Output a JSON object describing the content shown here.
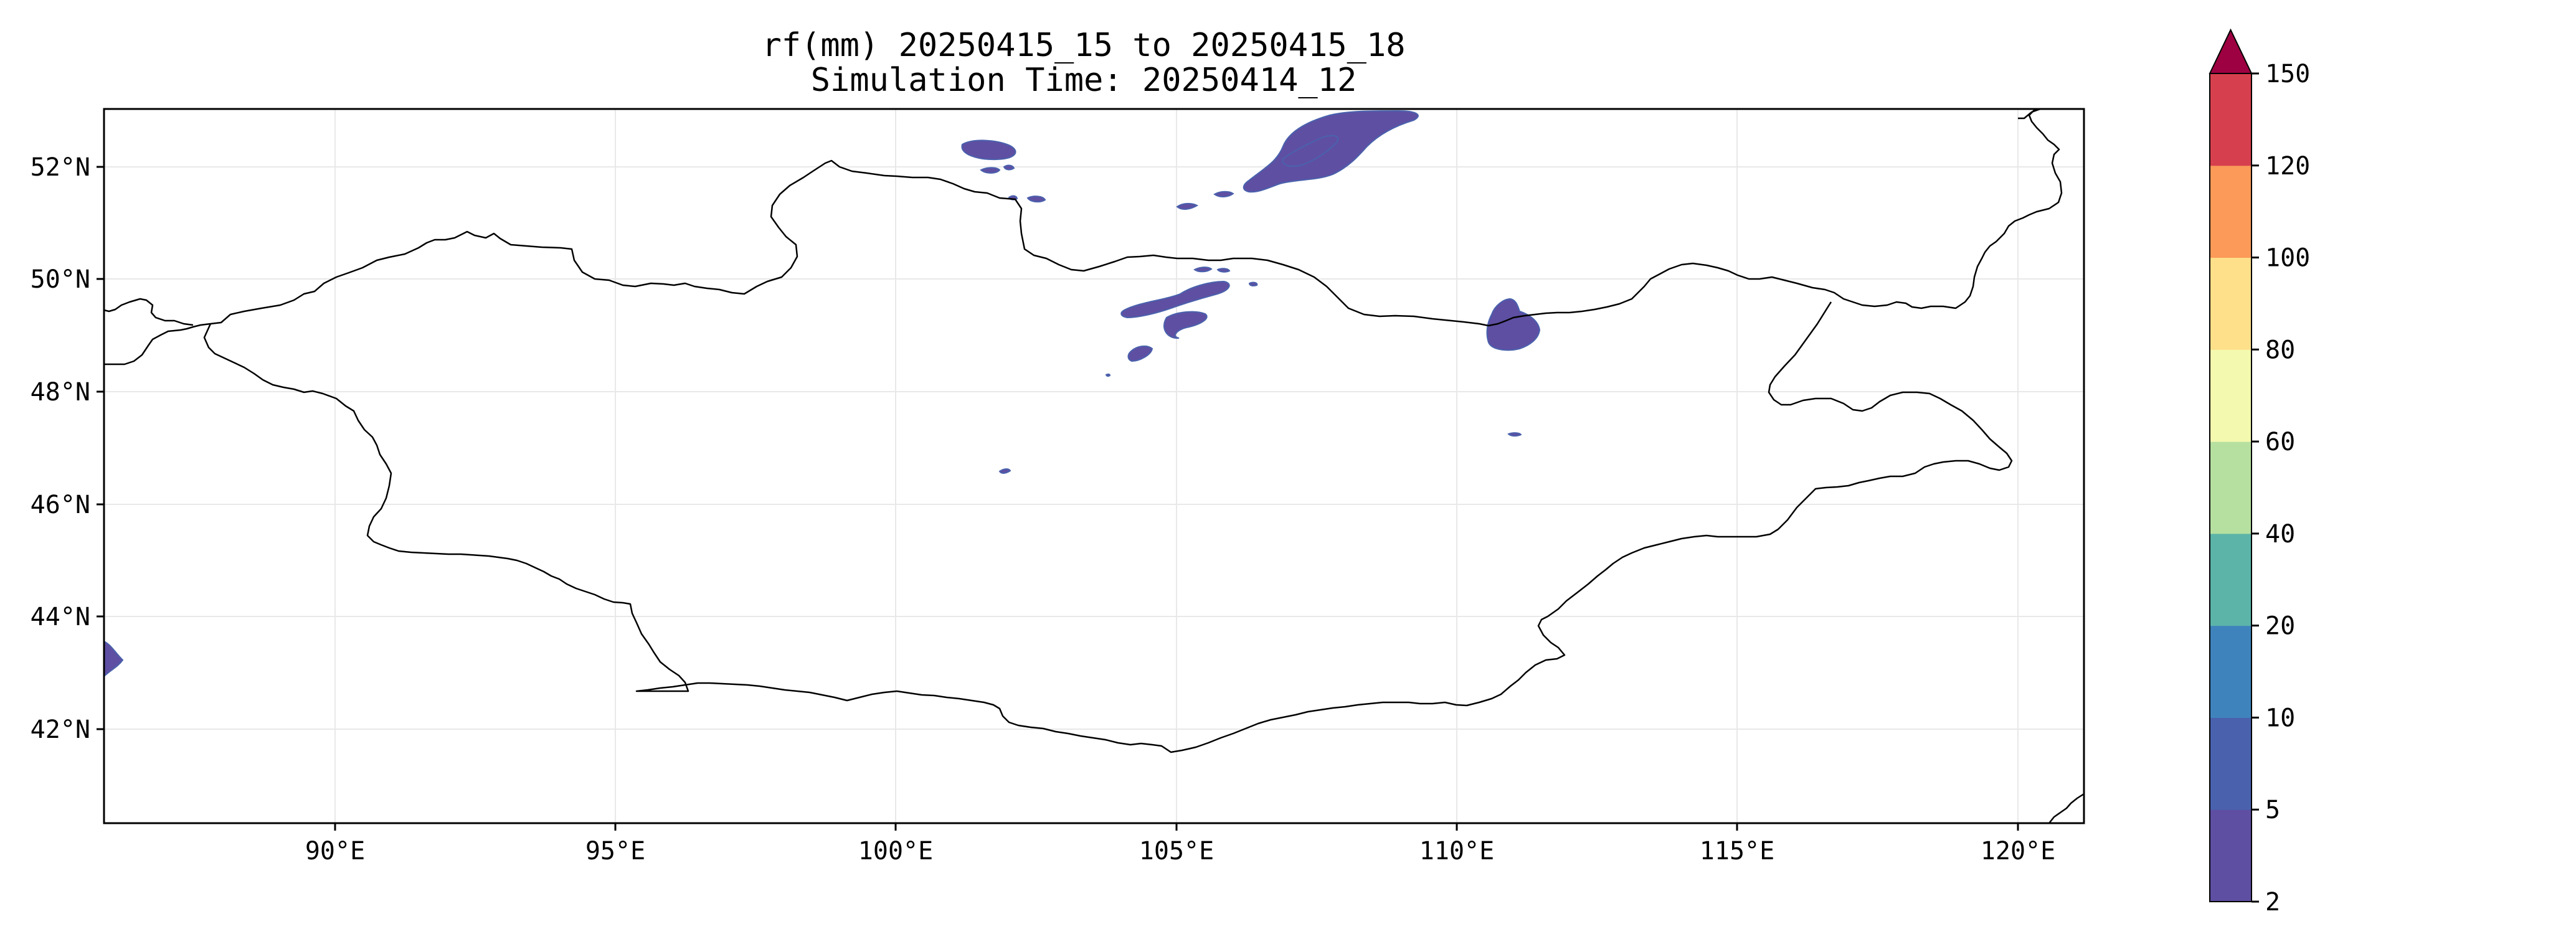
{
  "map": {
    "title": "rf(mm) 20250415_15 to 20250415_18",
    "subtitle": "Simulation Time: 20250414_12",
    "lon_range": [
      86,
      121.2
    ],
    "lat_range": [
      40.3,
      53.0
    ],
    "lon_ticks": [
      "90°E",
      "95°E",
      "100°E",
      "105°E",
      "110°E",
      "115°E",
      "120°E"
    ],
    "lat_ticks": [
      "52°N",
      "50°N",
      "48°N",
      "46°N",
      "44°N",
      "42°N"
    ],
    "gridlines": true,
    "colors": {
      "border": "#000000",
      "grid": "#e8e8e8",
      "rain_light": "#5e4fa2",
      "rain_mid": "#4a62ad"
    }
  },
  "colorbar": {
    "levels": [
      "2",
      "5",
      "10",
      "20",
      "40",
      "60",
      "80",
      "100",
      "120",
      "150"
    ],
    "colors": [
      "#5e4fa2",
      "#4a62ad",
      "#3f83bd",
      "#5cb4a9",
      "#b6e0a0",
      "#f3f9ae",
      "#fee08b",
      "#fb9a59",
      "#d6404e",
      "#9e0142"
    ],
    "extend": "max",
    "orientation": "vertical"
  }
}
